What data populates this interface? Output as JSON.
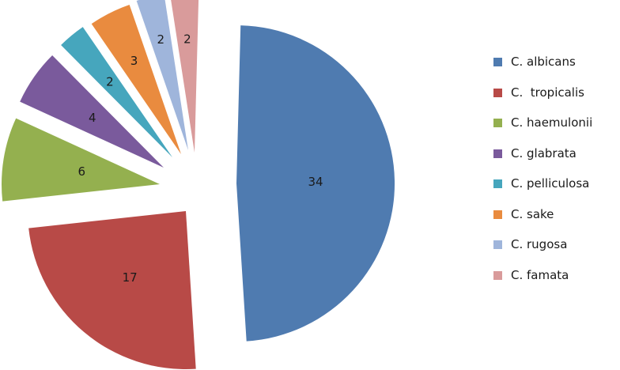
{
  "chart_data": {
    "type": "pie",
    "title": "",
    "exploded": true,
    "legend_position": "right",
    "slices": [
      {
        "label": "C. albicans",
        "value": 34,
        "color": "#4F7BB0"
      },
      {
        "label": "C.  tropicalis",
        "value": 17,
        "color": "#B84A47"
      },
      {
        "label": "C. haemulonii",
        "value": 6,
        "color": "#94B04F"
      },
      {
        "label": "C. glabrata",
        "value": 4,
        "color": "#7A5A9C"
      },
      {
        "label": "C. pelliculosa",
        "value": 2,
        "color": "#46A6BD"
      },
      {
        "label": "C. sake",
        "value": 3,
        "color": "#E98B3F"
      },
      {
        "label": "C. rugosa",
        "value": 2,
        "color": "#9FB5DB"
      },
      {
        "label": "C. famata",
        "value": 2,
        "color": "#D99B9B"
      }
    ]
  }
}
